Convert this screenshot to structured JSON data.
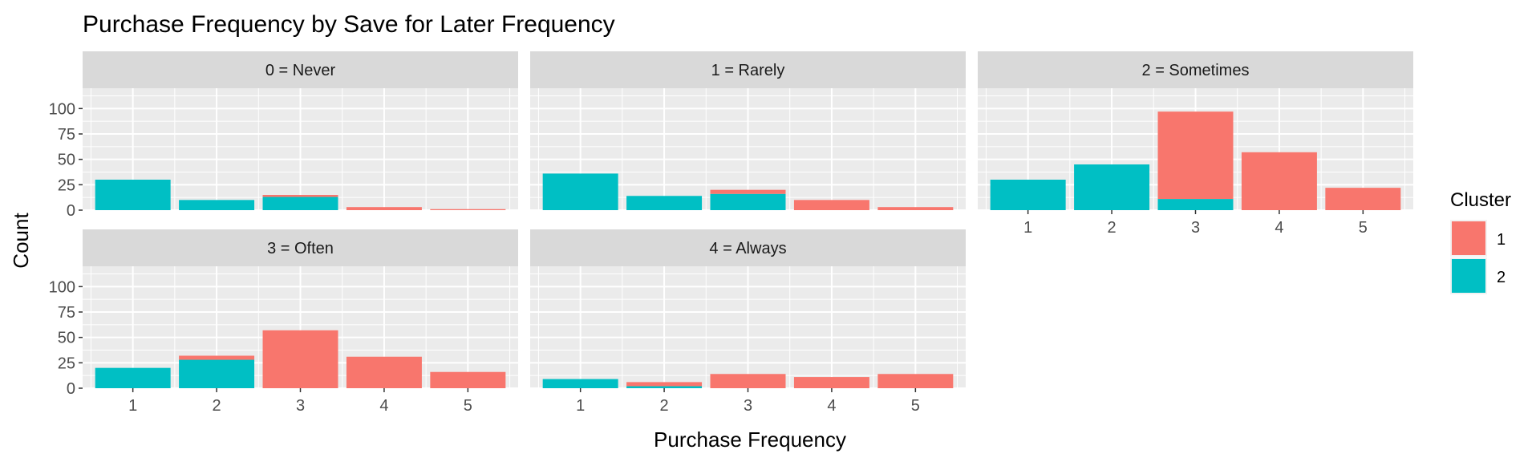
{
  "chart_data": {
    "type": "bar",
    "stacked": true,
    "title": "Purchase Frequency by Save for Later Frequency",
    "xlabel": "Purchase Frequency",
    "ylabel": "Count",
    "ylim": [
      0,
      120
    ],
    "yticks": [
      0,
      25,
      50,
      75,
      100
    ],
    "categories": [
      "1",
      "2",
      "3",
      "4",
      "5"
    ],
    "grid": true,
    "legend": {
      "title": "Cluster",
      "placement": "right",
      "items": [
        {
          "label": "1",
          "color": "#F8766D"
        },
        {
          "label": "2",
          "color": "#00BFC4"
        }
      ]
    },
    "facets": [
      {
        "label": "0 = Never",
        "series": [
          {
            "name": "1",
            "values": [
              0,
              0,
              2,
              3,
              1
            ]
          },
          {
            "name": "2",
            "values": [
              30,
              10,
              13,
              0,
              0
            ]
          }
        ]
      },
      {
        "label": "1 = Rarely",
        "series": [
          {
            "name": "1",
            "values": [
              0,
              0,
              4,
              10,
              3
            ]
          },
          {
            "name": "2",
            "values": [
              36,
              14,
              16,
              0,
              0
            ]
          }
        ]
      },
      {
        "label": "2 = Sometimes",
        "series": [
          {
            "name": "1",
            "values": [
              0,
              0,
              86,
              57,
              22
            ]
          },
          {
            "name": "2",
            "values": [
              30,
              45,
              11,
              0,
              0
            ]
          }
        ]
      },
      {
        "label": "3 = Often",
        "series": [
          {
            "name": "1",
            "values": [
              0,
              4,
              57,
              31,
              16
            ]
          },
          {
            "name": "2",
            "values": [
              20,
              28,
              0,
              0,
              0
            ]
          }
        ]
      },
      {
        "label": "4 = Always",
        "series": [
          {
            "name": "1",
            "values": [
              0,
              4,
              14,
              11,
              14
            ]
          },
          {
            "name": "2",
            "values": [
              9,
              2,
              0,
              0,
              0
            ]
          }
        ]
      }
    ]
  }
}
